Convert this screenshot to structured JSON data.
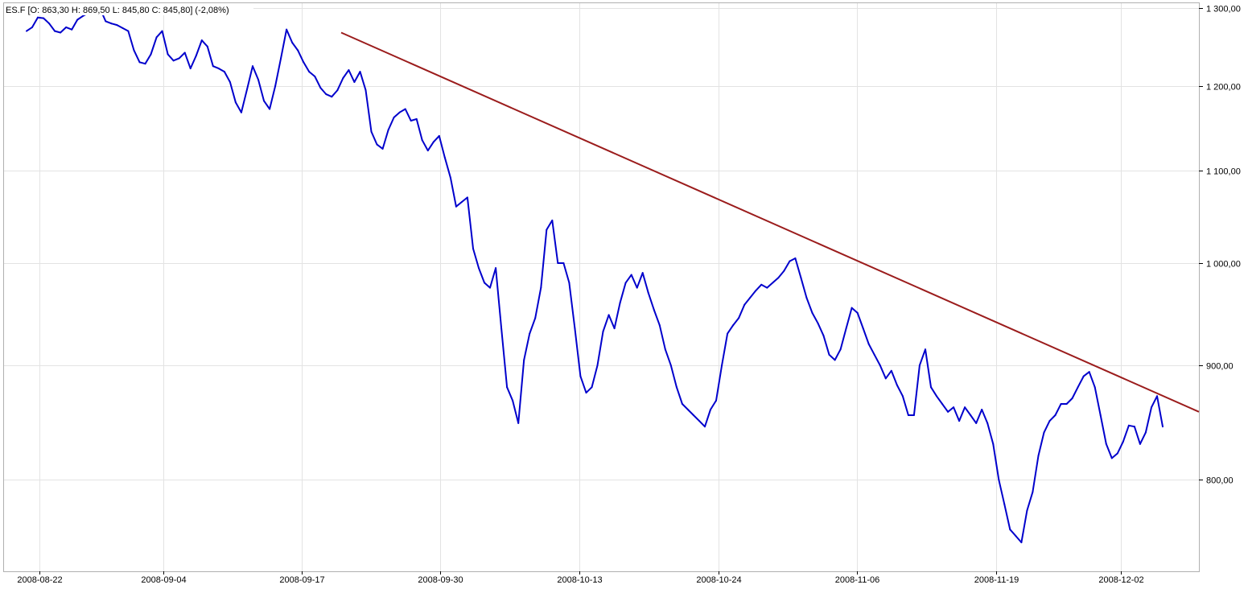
{
  "header": {
    "symbol": "ES.F",
    "ohlc_text": "ES.F [O: 863,30  H: 869,50  L: 845,80  C: 845,80] (-2,08%)"
  },
  "colors": {
    "series": "#0000cc",
    "trendline": "#9b1c1c",
    "grid": "#e3e3e3",
    "background": "#ffffff"
  },
  "chart_data": {
    "type": "line",
    "title": "",
    "xlabel": "",
    "ylabel": "",
    "ylim": [
      728,
      1307
    ],
    "y_scale": "log",
    "y_ticks": [
      800,
      900,
      1000,
      1100,
      1200,
      1300
    ],
    "y_tick_labels": [
      "800,00",
      "900,00",
      "1 000,00",
      "1 100,00",
      "1 200,00",
      "1 300,00"
    ],
    "x_tick_labels": [
      "2008-08-22",
      "2008-09-04",
      "2008-09-17",
      "2008-09-30",
      "2008-10-13",
      "2008-10-24",
      "2008-11-06",
      "2008-11-19",
      "2008-12-02"
    ],
    "grid": true,
    "legend": "none",
    "series": [
      {
        "values": [
          1270,
          1275,
          1288,
          1287,
          1280,
          1270,
          1268,
          1275,
          1272,
          1285,
          1290,
          1294,
          1292,
          1300,
          1283,
          1280,
          1278,
          1274,
          1270,
          1245,
          1230,
          1228,
          1240,
          1262,
          1270,
          1240,
          1232,
          1235,
          1242,
          1222,
          1238,
          1258,
          1250,
          1225,
          1222,
          1218,
          1205,
          1180,
          1168,
          1196,
          1225,
          1208,
          1182,
          1172,
          1200,
          1235,
          1272,
          1255,
          1245,
          1230,
          1218,
          1212,
          1198,
          1190,
          1187,
          1195,
          1210,
          1220,
          1205,
          1218,
          1195,
          1145,
          1130,
          1125,
          1147,
          1162,
          1168,
          1172,
          1158,
          1160,
          1135,
          1123,
          1133,
          1140,
          1115,
          1092,
          1060,
          1065,
          1070,
          1015,
          995,
          980,
          975,
          995,
          935,
          880,
          868,
          848,
          905,
          930,
          945,
          975,
          1035,
          1045,
          1000,
          1000,
          980,
          935,
          890,
          875,
          880,
          900,
          932,
          948,
          935,
          960,
          980,
          988,
          975,
          990,
          970,
          953,
          938,
          915,
          900,
          880,
          865,
          860,
          855,
          850,
          845,
          860,
          868,
          900,
          930,
          938,
          945,
          958,
          965,
          972,
          978,
          975,
          980,
          985,
          992,
          1002,
          1005,
          985,
          965,
          950,
          940,
          928,
          910,
          905,
          915,
          935,
          955,
          950,
          935,
          920,
          910,
          900,
          888,
          895,
          882,
          872,
          855,
          855,
          900,
          915,
          880,
          872,
          865,
          858,
          862,
          850,
          862,
          855,
          848,
          860,
          848,
          830,
          800,
          780,
          760,
          755,
          750,
          775,
          790,
          820,
          840,
          850,
          855,
          865,
          865,
          870,
          880,
          890,
          894,
          880,
          855,
          830,
          818,
          822,
          832,
          846,
          845,
          830,
          840,
          862,
          872,
          845
        ]
      }
    ],
    "trendline": {
      "start": 1268,
      "end": 858
    }
  }
}
